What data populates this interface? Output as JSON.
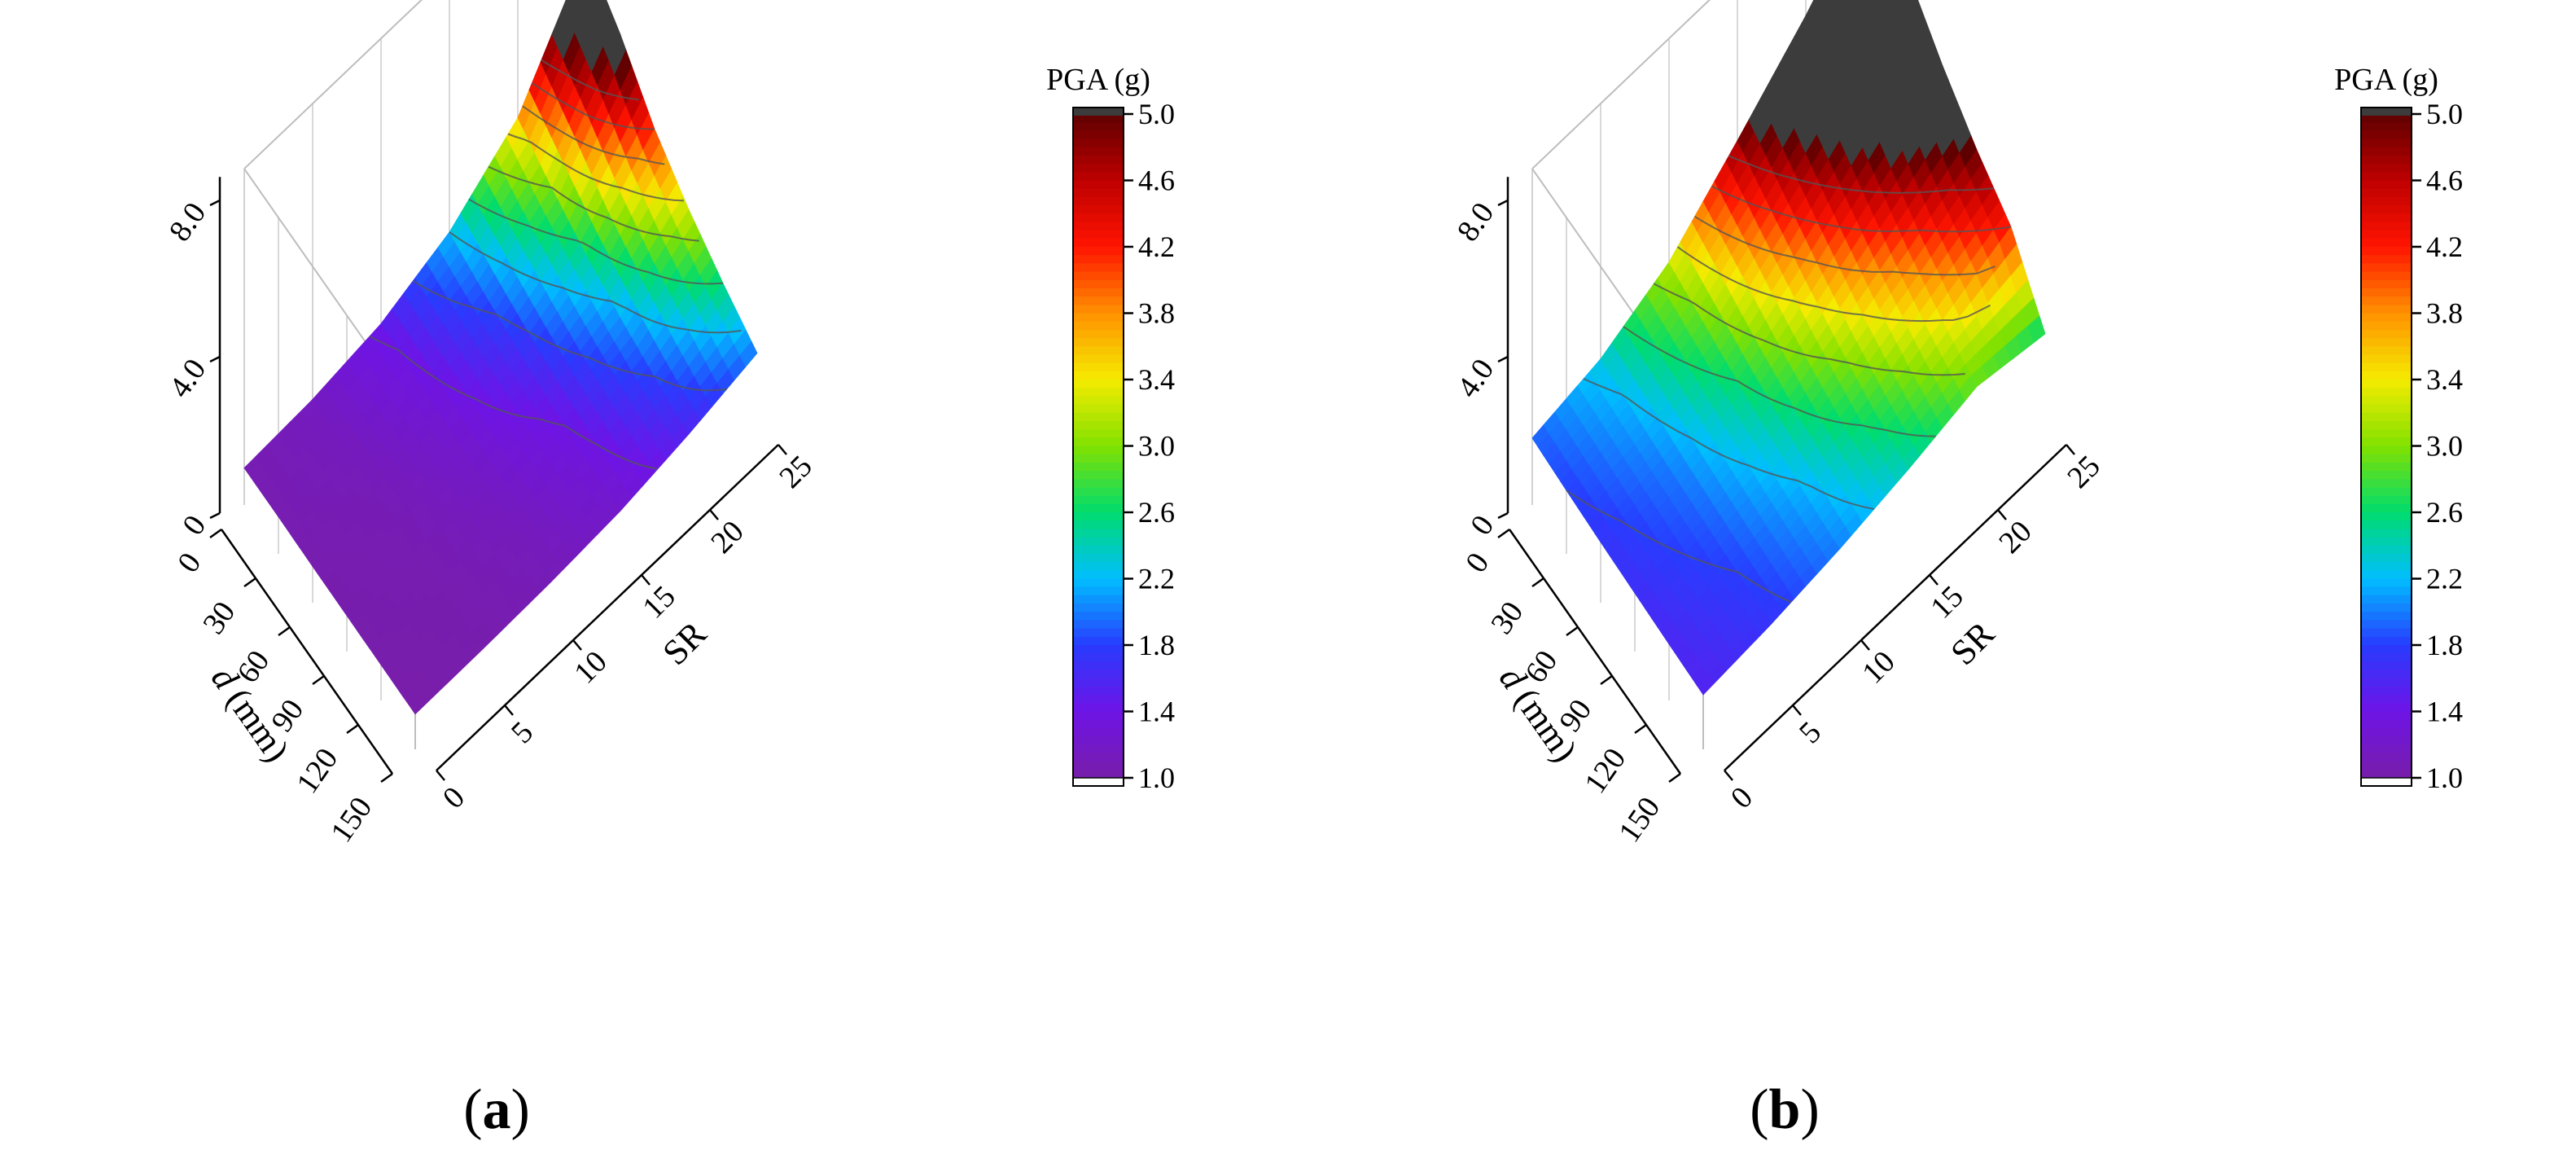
{
  "chart_data": [
    {
      "panel": "(a)",
      "panel_label": {
        "open": "(",
        "letter": "a",
        "close": ")"
      },
      "type": "surface3d",
      "title": "",
      "axes": {
        "x": {
          "label_italic": "d",
          "label_rest": " (mm)",
          "ticks": [
            "0",
            "30",
            "60",
            "90",
            "120",
            "150"
          ],
          "range": [
            0,
            150
          ]
        },
        "y": {
          "label": "SR",
          "ticks": [
            "0",
            "5",
            "10",
            "15",
            "20",
            "25"
          ],
          "range": [
            0,
            25
          ]
        },
        "z": {
          "ticks": [
            "0",
            "4.0",
            "8.0"
          ],
          "range": [
            0,
            8
          ]
        }
      },
      "colorbar": {
        "title": "PGA (g)",
        "ticks": [
          "1.0",
          "1.4",
          "1.8",
          "2.2",
          "2.6",
          "3.0",
          "3.4",
          "3.8",
          "4.2",
          "4.6",
          "5.0"
        ],
        "range": [
          1.0,
          5.0
        ],
        "above_max_color": "#3c3c3c"
      },
      "d_values": [
        0,
        30,
        60,
        90,
        120,
        150
      ],
      "sr_values": [
        0,
        5,
        10,
        15,
        20,
        25
      ],
      "pga": [
        [
          1.05,
          1.15,
          1.45,
          2.2,
          3.6,
          6.5
        ],
        [
          1.05,
          1.12,
          1.35,
          1.9,
          3.0,
          5.5
        ],
        [
          1.03,
          1.08,
          1.25,
          1.65,
          2.5,
          4.2
        ],
        [
          1.02,
          1.05,
          1.18,
          1.45,
          2.1,
          3.3
        ],
        [
          1.01,
          1.03,
          1.12,
          1.32,
          1.8,
          2.6
        ],
        [
          1.0,
          1.02,
          1.08,
          1.22,
          1.55,
          2.0
        ]
      ]
    },
    {
      "panel": "(b)",
      "panel_label": {
        "open": "(",
        "letter": "b",
        "close": ")"
      },
      "type": "surface3d",
      "title": "",
      "axes": {
        "x": {
          "label_italic": "d",
          "label_rest": " (mm)",
          "ticks": [
            "0",
            "30",
            "60",
            "90",
            "120",
            "150"
          ],
          "range": [
            0,
            150
          ]
        },
        "y": {
          "label": "SR",
          "ticks": [
            "0",
            "5",
            "10",
            "15",
            "20",
            "25"
          ],
          "range": [
            0,
            25
          ]
        },
        "z": {
          "ticks": [
            "0",
            "4.0",
            "8.0"
          ],
          "range": [
            0,
            8
          ]
        }
      },
      "colorbar": {
        "title": "PGA (g)",
        "ticks": [
          "1.0",
          "1.4",
          "1.8",
          "2.2",
          "2.6",
          "3.0",
          "3.4",
          "3.8",
          "4.2",
          "4.6",
          "5.0"
        ],
        "range": [
          1.0,
          5.0
        ],
        "above_max_color": "#3c3c3c"
      },
      "d_values": [
        0,
        30,
        60,
        90,
        120,
        150
      ],
      "sr_values": [
        0,
        5,
        10,
        15,
        20,
        25
      ],
      "pga": [
        [
          1.9,
          2.3,
          3.2,
          4.8,
          6.5,
          8.5
        ],
        [
          1.8,
          2.15,
          2.9,
          4.2,
          5.6,
          7.2
        ],
        [
          1.72,
          2.0,
          2.6,
          3.6,
          4.8,
          6.0
        ],
        [
          1.66,
          1.9,
          2.35,
          3.1,
          4.0,
          5.0
        ],
        [
          1.6,
          1.8,
          2.15,
          2.7,
          3.4,
          4.2
        ],
        [
          1.55,
          1.72,
          2.0,
          2.4,
          2.9,
          2.55
        ]
      ]
    }
  ]
}
